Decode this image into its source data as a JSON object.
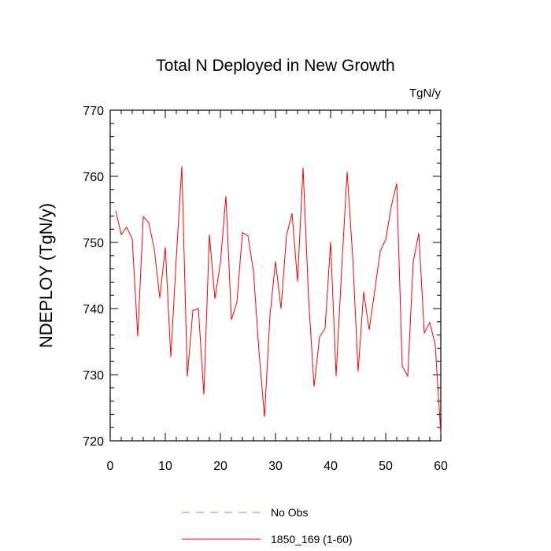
{
  "chart_data": {
    "type": "line",
    "title": "Total N Deployed in New Growth",
    "units": "TgN/y",
    "ylabel": "NDEPLOY  (TgN/y)",
    "xlabel": "",
    "xlim": [
      0,
      60
    ],
    "ylim": [
      720,
      770
    ],
    "xticks": [
      0,
      10,
      20,
      30,
      40,
      50,
      60
    ],
    "yticks": [
      720,
      730,
      740,
      750,
      760,
      770
    ],
    "grid": false,
    "legend_position": "bottom",
    "series": [
      {
        "name": "No Obs",
        "color": "#8080ff",
        "dash": "dashed",
        "values": []
      },
      {
        "name": "1850_169 (1-60)",
        "color": "#ff0000",
        "dash": "solid",
        "x": [
          1,
          2,
          3,
          4,
          5,
          6,
          7,
          8,
          9,
          10,
          11,
          12,
          13,
          14,
          15,
          16,
          17,
          18,
          19,
          20,
          21,
          22,
          23,
          24,
          25,
          26,
          27,
          28,
          29,
          30,
          31,
          32,
          33,
          34,
          35,
          36,
          37,
          38,
          39,
          40,
          41,
          42,
          43,
          44,
          45,
          46,
          47,
          48,
          49,
          50,
          51,
          52,
          53,
          54,
          55,
          56,
          57,
          58,
          59,
          60
        ],
        "values": [
          754.8,
          751.2,
          752.3,
          750.5,
          735.8,
          753.9,
          753.0,
          749.0,
          741.6,
          749.3,
          732.7,
          747.7,
          761.5,
          729.7,
          739.7,
          740.0,
          727.0,
          751.2,
          741.5,
          746.9,
          757.0,
          738.3,
          741.0,
          751.5,
          751.0,
          745.7,
          733.5,
          723.6,
          739.0,
          747.1,
          740.0,
          751.1,
          754.4,
          744.1,
          761.3,
          741.6,
          728.2,
          735.7,
          737.0,
          750.1,
          729.8,
          745.8,
          760.7,
          748.0,
          730.5,
          742.5,
          736.8,
          742.6,
          748.7,
          750.4,
          755.4,
          758.9,
          731.3,
          729.8,
          747.1,
          751.4,
          736.3,
          737.9,
          734.4,
          721.0
        ]
      }
    ]
  }
}
